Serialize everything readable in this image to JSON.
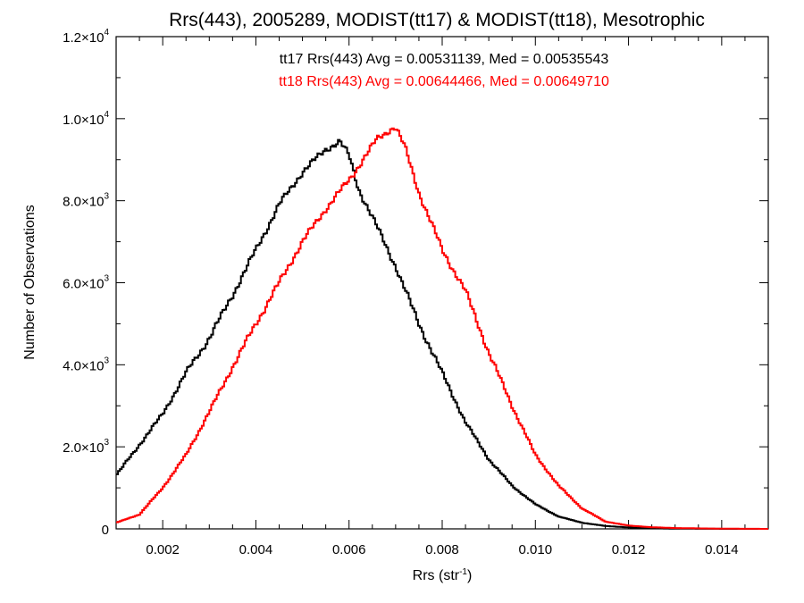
{
  "chart_data": {
    "type": "line",
    "title": "Rrs(443), 2005289, MODIST(tt17) & MODIST(tt18), Mesotrophic",
    "xlabel": {
      "base": "Rrs (str",
      "sup": "-1",
      "tail": ")"
    },
    "ylabel": "Number of Observations",
    "xlim": [
      0.001,
      0.015
    ],
    "ylim": [
      0,
      12000
    ],
    "grid": false,
    "step": true,
    "x_ticks": [
      {
        "value": 0.002,
        "label": "0.002"
      },
      {
        "value": 0.004,
        "label": "0.004"
      },
      {
        "value": 0.006,
        "label": "0.006"
      },
      {
        "value": 0.008,
        "label": "0.008"
      },
      {
        "value": 0.01,
        "label": "0.010"
      },
      {
        "value": 0.012,
        "label": "0.012"
      },
      {
        "value": 0.014,
        "label": "0.014"
      }
    ],
    "y_ticks": [
      {
        "value": 0,
        "mant": "0",
        "exp": ""
      },
      {
        "value": 2000,
        "mant": "2.0×10",
        "exp": "3"
      },
      {
        "value": 4000,
        "mant": "4.0×10",
        "exp": "3"
      },
      {
        "value": 6000,
        "mant": "6.0×10",
        "exp": "3"
      },
      {
        "value": 8000,
        "mant": "8.0×10",
        "exp": "3"
      },
      {
        "value": 10000,
        "mant": "1.0×10",
        "exp": "4"
      },
      {
        "value": 12000,
        "mant": "1.2×10",
        "exp": "4"
      }
    ],
    "annotations": [
      {
        "text": "tt17 Rrs(443) Avg = 0.00531139, Med = 0.00535543",
        "color": "#000000"
      },
      {
        "text": "tt18 Rrs(443) Avg = 0.00644466, Med = 0.00649710",
        "color": "#ff0000"
      }
    ],
    "series": [
      {
        "color": "#000000",
        "x": [
          0.001,
          0.0015,
          0.002,
          0.0025,
          0.003,
          0.0035,
          0.004,
          0.0045,
          0.005,
          0.0055,
          0.0058,
          0.006,
          0.0062,
          0.0065,
          0.007,
          0.0075,
          0.008,
          0.0085,
          0.009,
          0.0095,
          0.01,
          0.0105,
          0.011,
          0.0115,
          0.012,
          0.0125,
          0.013,
          0.014,
          0.015
        ],
        "y": [
          1300,
          2050,
          2800,
          3800,
          4650,
          5700,
          6800,
          7900,
          8700,
          9250,
          9450,
          9100,
          8300,
          7600,
          6400,
          5000,
          3800,
          2600,
          1700,
          1050,
          600,
          300,
          150,
          70,
          35,
          15,
          5,
          1,
          0
        ]
      },
      {
        "color": "#ff0000",
        "x": [
          0.001,
          0.0015,
          0.002,
          0.0025,
          0.003,
          0.0035,
          0.004,
          0.0045,
          0.005,
          0.0055,
          0.006,
          0.0063,
          0.0066,
          0.0069,
          0.007,
          0.0072,
          0.0075,
          0.008,
          0.0085,
          0.009,
          0.0095,
          0.01,
          0.0105,
          0.011,
          0.0115,
          0.012,
          0.0125,
          0.013,
          0.014,
          0.015
        ],
        "y": [
          150,
          350,
          1000,
          1800,
          2850,
          3950,
          5000,
          6000,
          7000,
          7800,
          8500,
          9000,
          9500,
          9750,
          9800,
          9300,
          8200,
          6800,
          5800,
          4300,
          3000,
          1800,
          1050,
          500,
          180,
          80,
          40,
          20,
          5,
          0
        ]
      }
    ]
  }
}
